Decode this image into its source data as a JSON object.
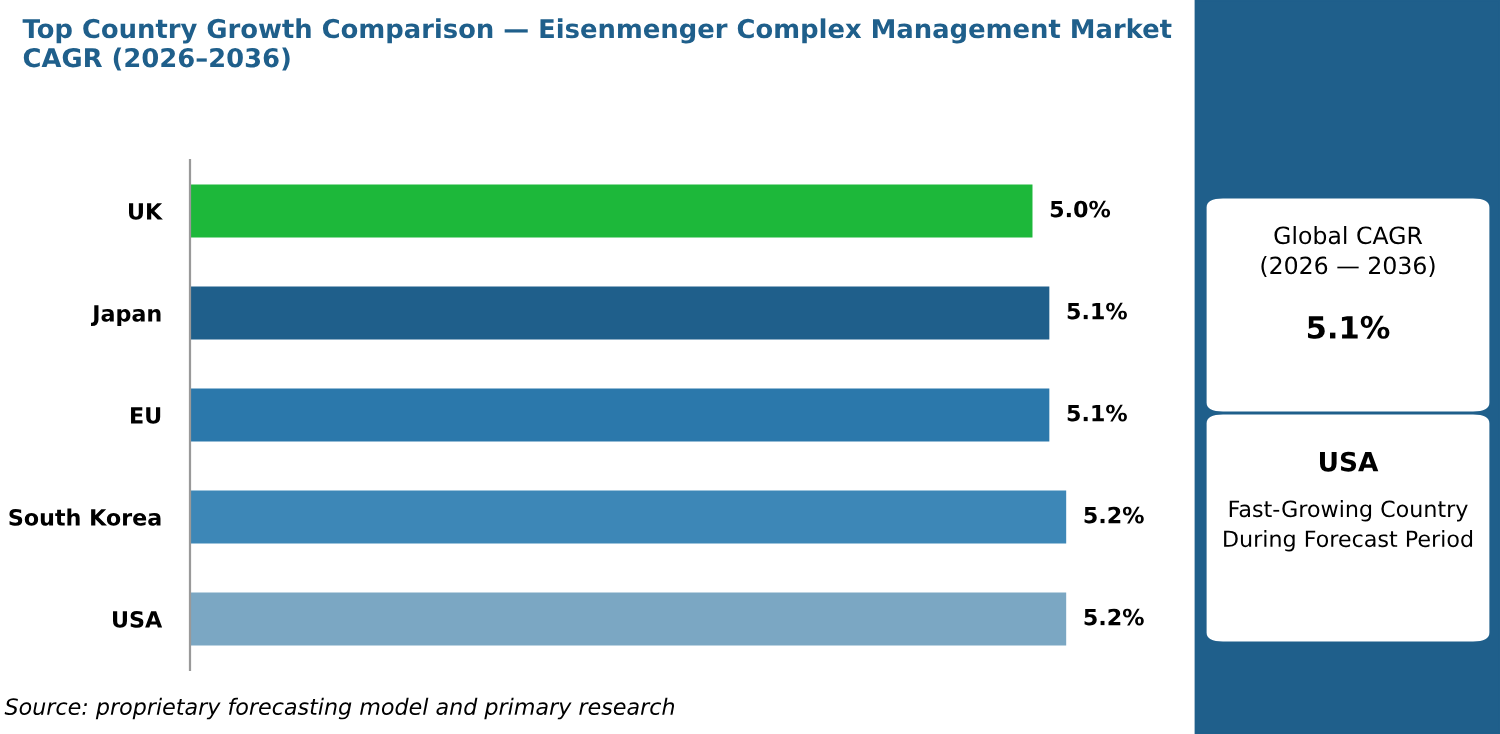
{
  "chart_data": {
    "type": "bar",
    "orientation": "horizontal",
    "title": "Top Country Growth Comparison — Eisenmenger Complex Management Market\nCAGR (2026–2036)",
    "categories": [
      "UK",
      "Japan",
      "EU",
      "South Korea",
      "USA"
    ],
    "values": [
      5.0,
      5.1,
      5.1,
      5.2,
      5.2
    ],
    "colors": [
      "#1db83a",
      "#1f5f8b",
      "#2b78ab",
      "#3d87b7",
      "#7ba7c3"
    ],
    "value_labels": [
      "5.0%",
      "5.1%",
      "5.1%",
      "5.2%",
      "5.2%"
    ],
    "tick_labels": "y",
    "grid": false,
    "legend": false,
    "annotations": [
      "Source: proprietary forecasting model and primary research",
      "Global CAGR\n(2026 — 2036)",
      "5.1%",
      "USA",
      "Fast-Growing Country\nDuring Forecast Period"
    ]
  }
}
